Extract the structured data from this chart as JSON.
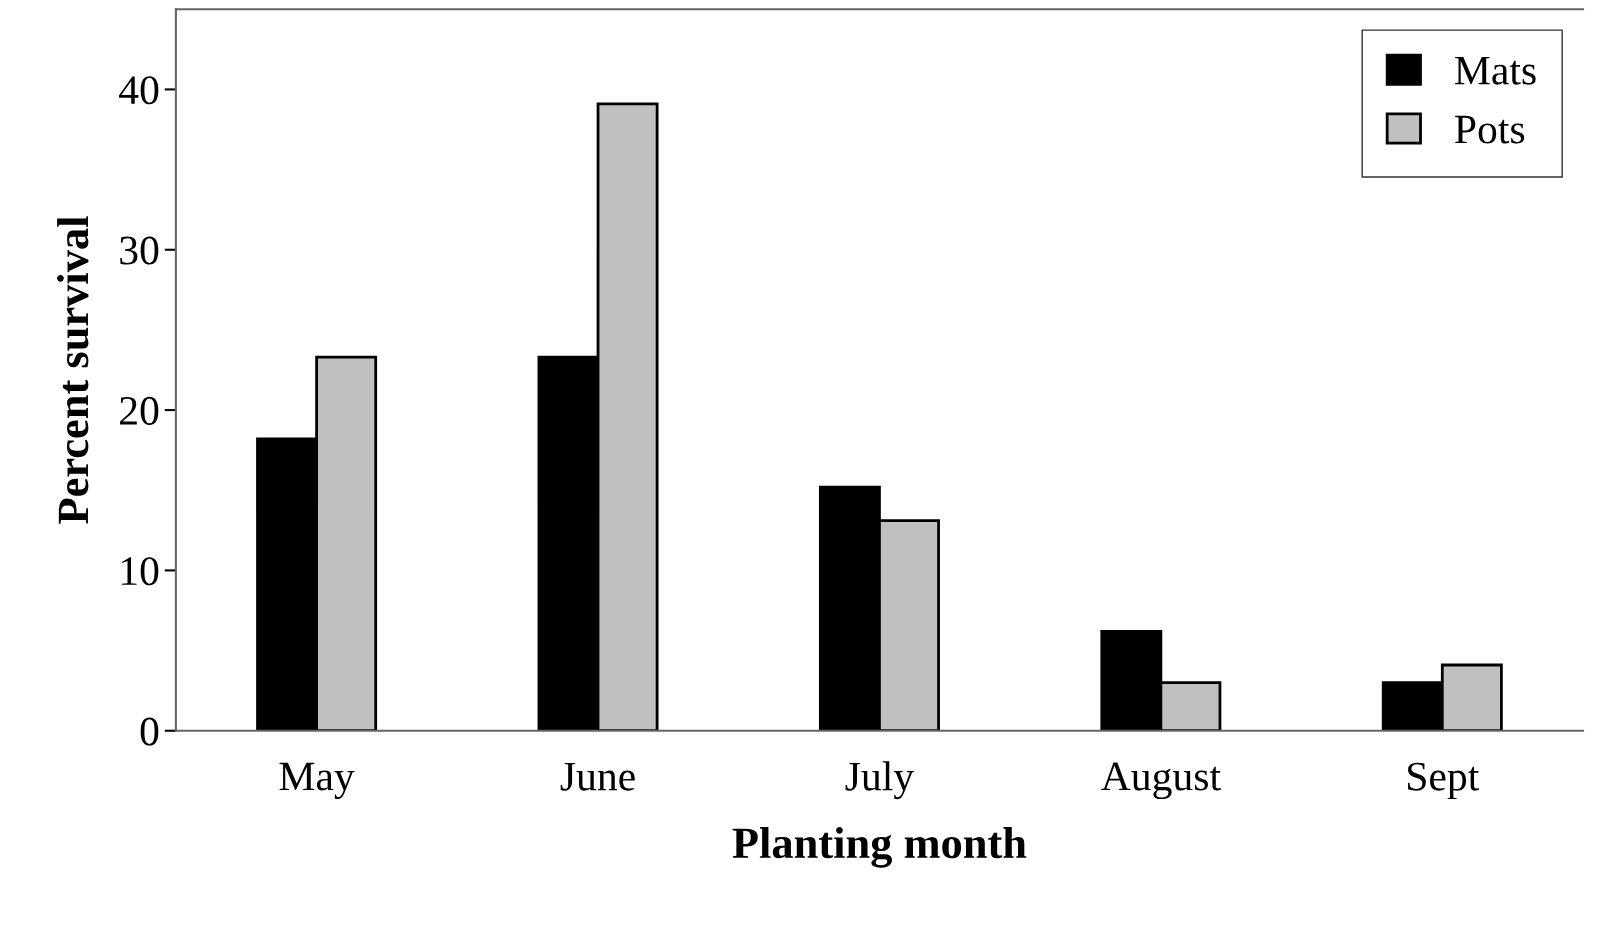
{
  "chart_data": {
    "type": "bar",
    "xlabel": "Planting month",
    "ylabel": "Percent survival",
    "categories": [
      "May",
      "June",
      "July",
      "August",
      "Sept"
    ],
    "series": [
      {
        "name": "Mats",
        "color": "#000000",
        "values": [
          18.2,
          23.3,
          15.2,
          6.2,
          3.0
        ]
      },
      {
        "name": "Pots",
        "color": "#c0c0c0",
        "values": [
          23.3,
          39.1,
          13.1,
          3.0,
          4.1
        ]
      }
    ],
    "ylim": [
      0,
      45
    ],
    "yticks": [
      0,
      10,
      20,
      30,
      40
    ],
    "grid": false,
    "legend": "top right"
  }
}
